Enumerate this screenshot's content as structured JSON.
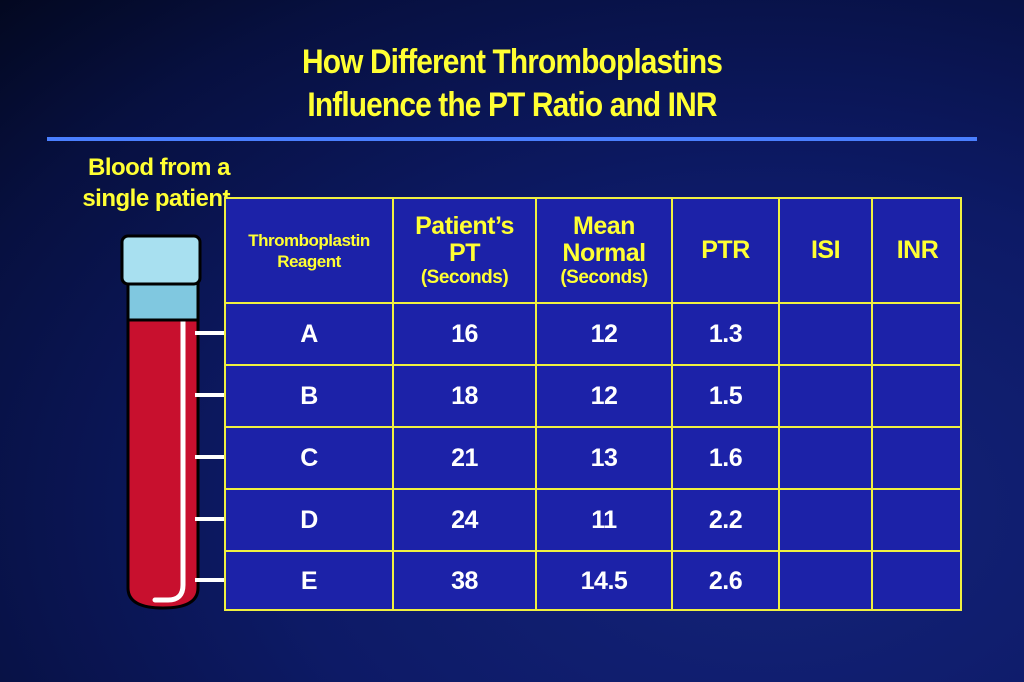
{
  "title": {
    "line1": "How Different Thromboplastins",
    "line2": "Influence the PT Ratio and INR"
  },
  "side_label": {
    "line1": "Blood from  a",
    "line2": "single patient"
  },
  "table": {
    "headers": [
      {
        "text": "Thromboplastin Reagent"
      },
      {
        "text": "Patient’s PT",
        "unit": "(Seconds)"
      },
      {
        "text": "Mean Normal",
        "unit": "(Seconds)"
      },
      {
        "text": "PTR"
      },
      {
        "text": "ISI"
      },
      {
        "text": "INR"
      }
    ],
    "rows": [
      [
        "A",
        16,
        12,
        1.3
      ],
      [
        "B",
        18,
        12,
        1.5
      ],
      [
        "C",
        21,
        13,
        1.6
      ],
      [
        "D",
        24,
        11,
        2.2
      ],
      [
        "E",
        38,
        14.5,
        2.6
      ]
    ]
  }
}
